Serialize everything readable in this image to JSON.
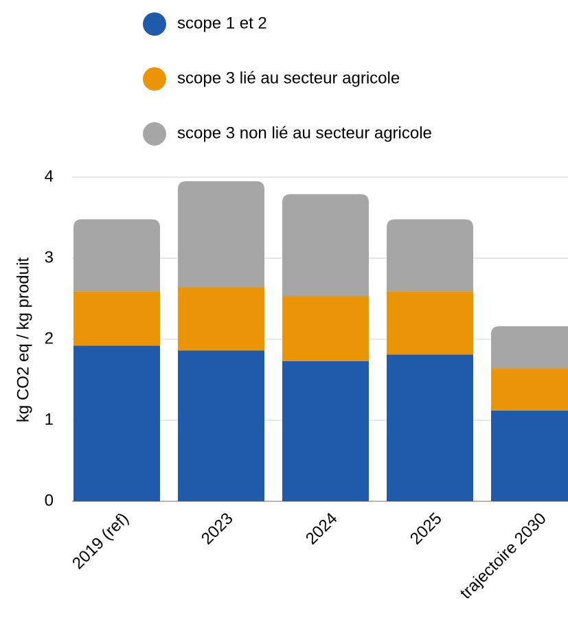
{
  "chart_data": {
    "type": "stacked_bar",
    "ylabel": "kg CO2 eq / kg produit",
    "categories": [
      "2019 (ref)",
      "2023",
      "2024",
      "2025",
      "trajectoire 2030"
    ],
    "series": [
      {
        "name": "scope 1 et 2",
        "color": "#1f5aab",
        "values": [
          1.92,
          1.86,
          1.73,
          1.81,
          1.12
        ]
      },
      {
        "name": "scope 3 lié au secteur agricole",
        "color": "#eb9506",
        "values": [
          0.67,
          0.78,
          0.8,
          0.78,
          0.52
        ]
      },
      {
        "name": "scope 3 non lié au secteur agricole",
        "color": "#a6a6a6",
        "values": [
          0.89,
          1.31,
          1.26,
          0.89,
          0.52
        ]
      }
    ],
    "ylim": [
      0,
      4
    ],
    "yticks": [
      0,
      1,
      2,
      3,
      4
    ],
    "grid": true,
    "legend": "top"
  }
}
